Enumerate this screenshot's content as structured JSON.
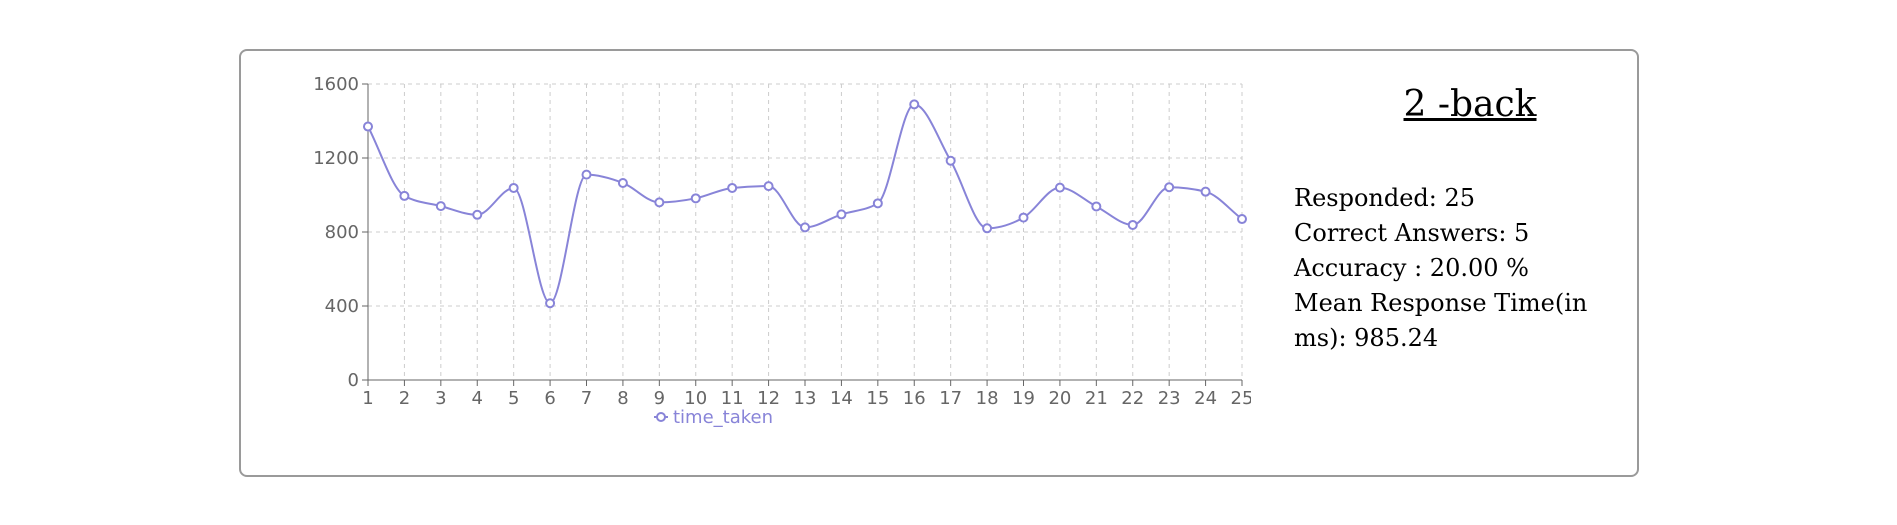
{
  "panel": {
    "title": "2 -back",
    "stats": {
      "responded_label": "Responded: ",
      "responded_value": "25",
      "correct_label": "Correct Answers: ",
      "correct_value": "5",
      "accuracy_label": "Accuracy : ",
      "accuracy_value": "20.00 %",
      "mean_label": "Mean Response Time(in ms): ",
      "mean_value": "985.24"
    }
  },
  "chart_data": {
    "type": "line",
    "x": [
      1,
      2,
      3,
      4,
      5,
      6,
      7,
      8,
      9,
      10,
      11,
      12,
      13,
      14,
      15,
      16,
      17,
      18,
      19,
      20,
      21,
      22,
      23,
      24,
      25
    ],
    "series": [
      {
        "name": "time_taken",
        "color": "#8884d8",
        "values": [
          1370,
          995,
          940,
          893,
          1038,
          415,
          1110,
          1065,
          960,
          982,
          1038,
          1048,
          825,
          895,
          955,
          1490,
          1185,
          820,
          878,
          1040,
          938,
          838,
          1042,
          1018,
          870
        ]
      }
    ],
    "ylim": [
      0,
      1600
    ],
    "yticks": [
      0,
      400,
      800,
      1200,
      1600
    ],
    "grid": true,
    "legend": "bottom"
  }
}
